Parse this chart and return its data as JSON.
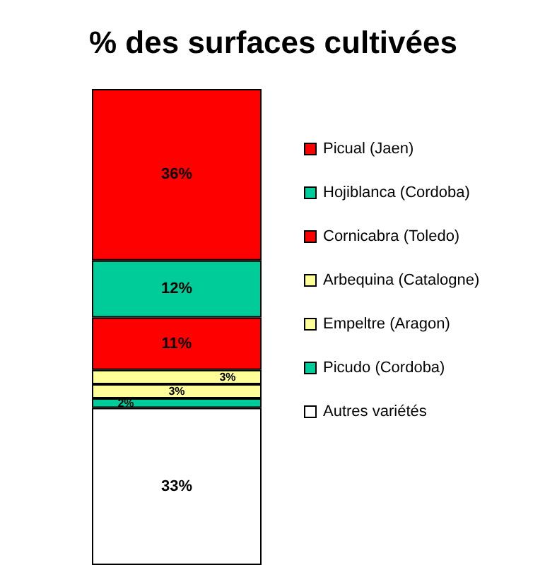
{
  "chart_data": {
    "type": "bar",
    "title": "% des surfaces cultivées",
    "categories": [
      null
    ],
    "stacked": true,
    "ylim": [
      0,
      100
    ],
    "tick_labels": false,
    "legend": "right",
    "series": [
      {
        "name": "Autres variétés",
        "color": "#ffffff",
        "values": [
          33
        ],
        "value_labels": [
          "33%"
        ]
      },
      {
        "name": "Picudo (Cordoba)",
        "color": "#00cc99",
        "values": [
          2
        ],
        "value_labels": [
          "2%"
        ]
      },
      {
        "name": "Empeltre (Aragon)",
        "color": "#ffff99",
        "values": [
          3
        ],
        "value_labels": [
          "3%"
        ]
      },
      {
        "name": "Arbequina (Catalogne)",
        "color": "#ffff99",
        "values": [
          3
        ],
        "value_labels": [
          "3%"
        ]
      },
      {
        "name": "Cornicabra (Toledo)",
        "color": "#ff0000",
        "values": [
          11
        ],
        "value_labels": [
          "11%"
        ]
      },
      {
        "name": "Hojiblanca (Cordoba)",
        "color": "#00cc99",
        "values": [
          12
        ],
        "value_labels": [
          "12%"
        ]
      },
      {
        "name": "Picual (Jaen)",
        "color": "#ff0000",
        "values": [
          36
        ],
        "value_labels": [
          "36%"
        ]
      }
    ]
  }
}
